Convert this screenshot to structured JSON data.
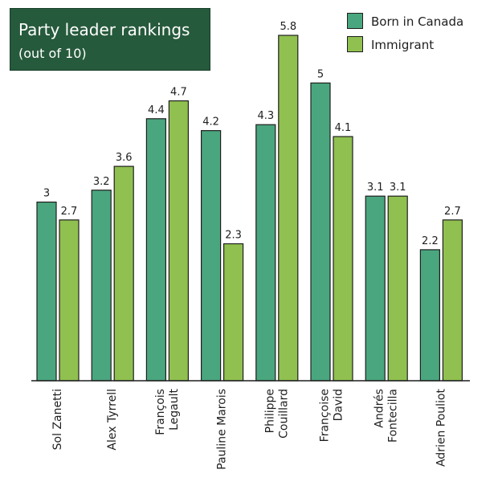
{
  "chart_data": {
    "type": "bar",
    "title": "Party leader rankings",
    "subtitle": "(out of 10)",
    "categories": [
      [
        "Sol Zanetti"
      ],
      [
        "Alex Tyrrell"
      ],
      [
        "François",
        "Legault"
      ],
      [
        "Pauline Marois"
      ],
      [
        "Philippe",
        "Couillard"
      ],
      [
        "Françoise",
        "David"
      ],
      [
        "Andrés",
        "Fontecilla"
      ],
      [
        "Adrien Pouliot"
      ]
    ],
    "series": [
      {
        "name": "Born in Canada",
        "color": "#4aa67e",
        "values": [
          3,
          3.2,
          4.4,
          4.2,
          4.3,
          5,
          3.1,
          2.2
        ],
        "labels": [
          "3",
          "3.2",
          "4.4",
          "4.2",
          "4.3",
          "5",
          "3.1",
          "2.2"
        ]
      },
      {
        "name": "Immigrant",
        "color": "#90c050",
        "values": [
          2.7,
          3.6,
          4.7,
          2.3,
          5.8,
          4.1,
          3.1,
          2.7
        ],
        "labels": [
          "2.7",
          "3.6",
          "4.7",
          "2.3",
          "5.8",
          "4.1",
          "3.1",
          "2.7"
        ]
      }
    ],
    "ylim": [
      0,
      6
    ],
    "legend_position": "top-right",
    "grid": false
  }
}
